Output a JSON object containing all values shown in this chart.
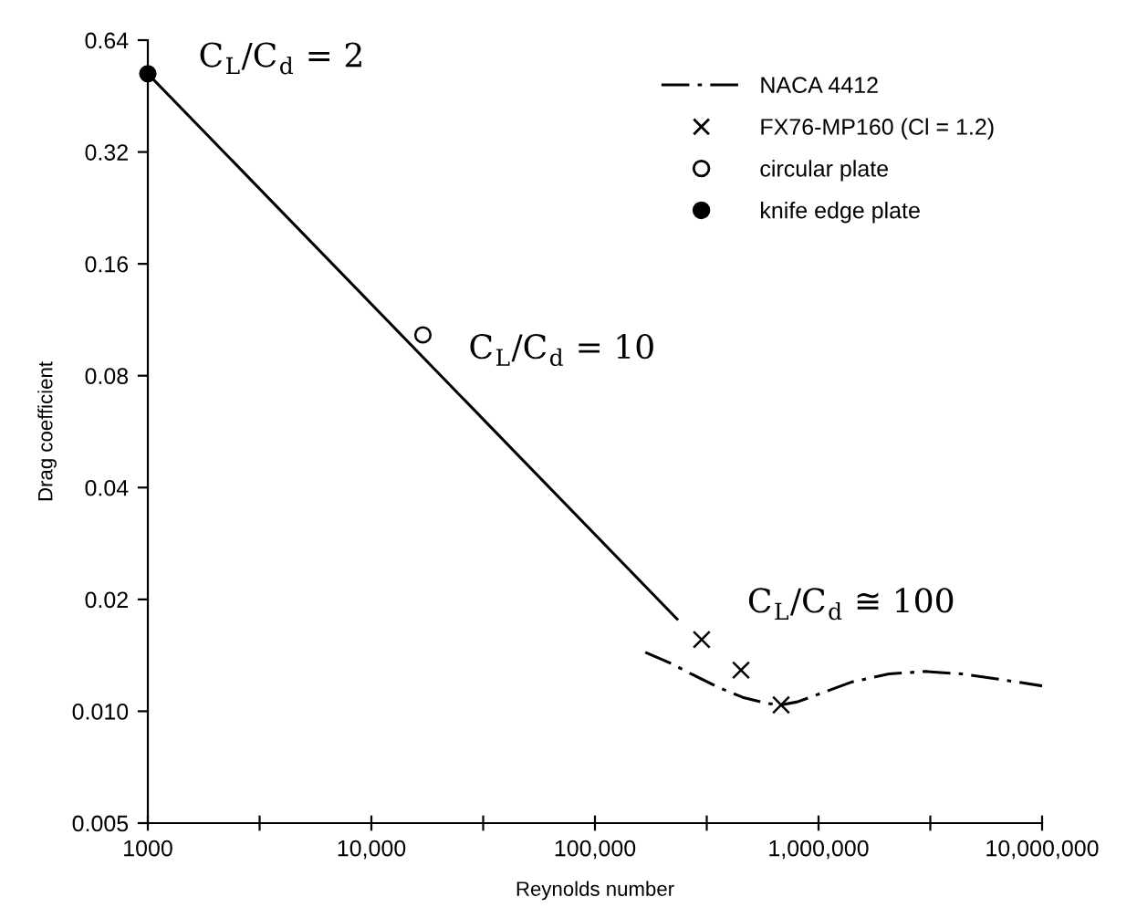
{
  "chart_data": {
    "type": "scatter",
    "xlabel": "Reynolds number",
    "ylabel": "Drag coefficient",
    "log": "xy",
    "xlim": [
      1000,
      10000000
    ],
    "xticks": [
      {
        "value": 1000,
        "label": "1000"
      },
      {
        "value": 3162,
        "label": null
      },
      {
        "value": 10000,
        "label": "10,000"
      },
      {
        "value": 31623,
        "label": null
      },
      {
        "value": 100000,
        "label": "100,000"
      },
      {
        "value": 316228,
        "label": null
      },
      {
        "value": 1000000,
        "label": "1,000,000"
      },
      {
        "value": 3162278,
        "label": null
      },
      {
        "value": 10000000,
        "label": "10,000,000"
      }
    ],
    "ylim": [
      0.005,
      0.64
    ],
    "yticks": [
      0.005,
      {
        "value": 0.01,
        "label": "0.010"
      },
      0.02,
      0.04,
      0.08,
      0.16,
      0.32,
      0.64
    ],
    "grid": false,
    "legend": "top right",
    "series": [
      {
        "name": "NACA 4412",
        "type": "line",
        "line_style": "dashdot",
        "marker": "none",
        "color": "#000000",
        "x": [
          168000,
          216000,
          277000,
          356000,
          458000,
          589000,
          680000,
          805000,
          1035000,
          1416000,
          2064000,
          3006000,
          4380000,
          6380000,
          10000000
        ],
        "values": [
          0.0144,
          0.0135,
          0.0125,
          0.0116,
          0.0109,
          0.0105,
          0.0104,
          0.0106,
          0.0112,
          0.012,
          0.0126,
          0.0128,
          0.0126,
          0.0122,
          0.0117
        ]
      },
      {
        "name": "FX76-MP160 (Cl = 1.2)",
        "marker": "cross",
        "color": "#000000",
        "x": [
          300000,
          450000,
          680000
        ],
        "values": [
          0.0156,
          0.0129,
          0.0104
        ]
      },
      {
        "name": "circular plate",
        "marker": "circle-open",
        "color": "#000000",
        "x": [
          17000
        ],
        "values": [
          0.103
        ]
      },
      {
        "name": "knife edge plate",
        "marker": "circle",
        "color": "#000000",
        "x": [
          1000
        ],
        "values": [
          0.52
        ]
      },
      {
        "type": "line",
        "line_style": "solid",
        "marker": "none",
        "color": "#000000",
        "x": [
          1000,
          233000
        ],
        "values": [
          0.52,
          0.0177
        ]
      }
    ],
    "annotations": [
      {
        "text": "C$_{L}$/C$_{d}$ = 2",
        "x": 1000,
        "y": 0.52
      },
      {
        "text": "C$_{L}$/C$_{d}$ = 10",
        "x": 17000,
        "y": 0.103
      },
      {
        "text": "C$_{L}$/C$_{d}$ ≅ 100",
        "x": 300000,
        "y": 0.0156
      }
    ]
  }
}
